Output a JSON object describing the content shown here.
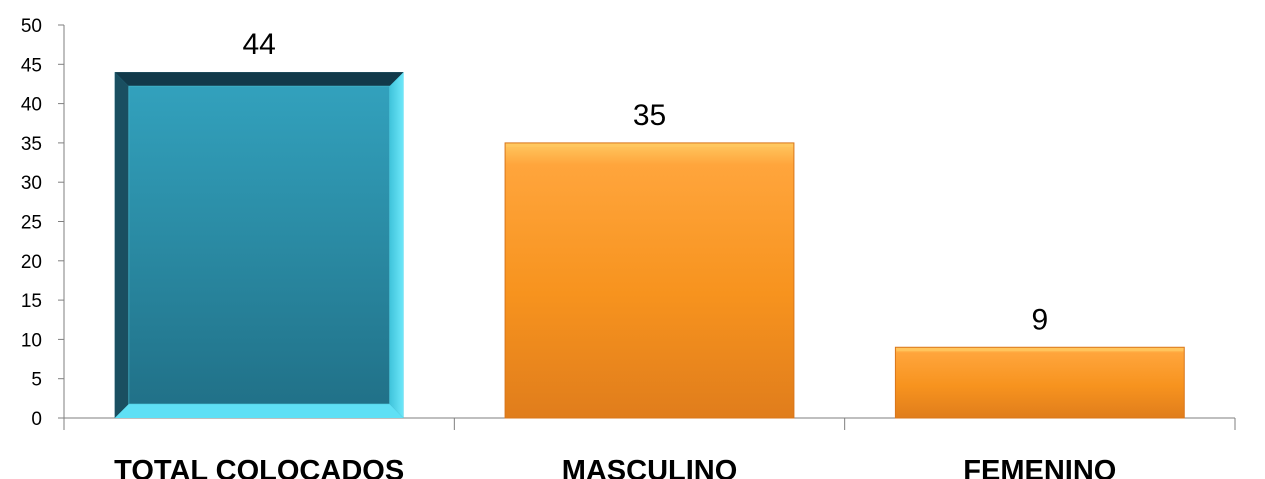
{
  "chart_data": {
    "type": "bar",
    "categories": [
      "TOTAL COLOCADOS",
      "MASCULINO",
      "FEMENINO"
    ],
    "values": [
      44,
      35,
      9
    ],
    "title": "",
    "xlabel": "",
    "ylabel": "",
    "ylim": [
      0,
      50
    ],
    "yticks": [
      0,
      5,
      10,
      15,
      20,
      25,
      30,
      35,
      40,
      45,
      50
    ],
    "grid": false,
    "legend": "none",
    "colors": {
      "total": "#2e8fa8",
      "total_highlight": "#5fe0f5",
      "total_shadow": "#12394a",
      "others": "#f7931e",
      "others_light": "#ffc860",
      "others_dark": "#d9761a"
    }
  }
}
